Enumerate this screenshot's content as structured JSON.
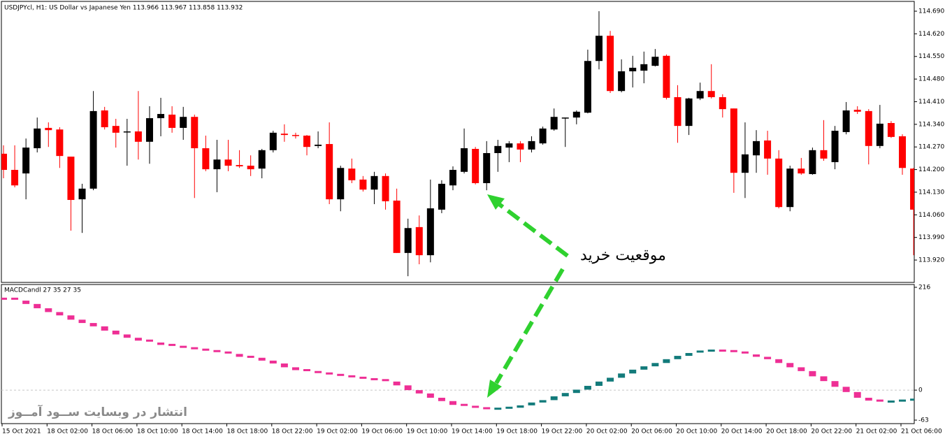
{
  "chart_data": [
    {
      "type": "candlestick",
      "title": "USDJPYcl, H1:  US Dollar vs Japanese Yen  113.966 113.967 113.858 113.932",
      "annotation": "موقعیت خرید",
      "categories": [
        "15 Oct 2021",
        null,
        null,
        null,
        "18 Oct 02:00",
        null,
        null,
        null,
        "18 Oct 06:00",
        null,
        null,
        null,
        "18 Oct 10:00",
        null,
        null,
        null,
        "18 Oct 14:00",
        null,
        null,
        null,
        "18 Oct 18:00",
        null,
        null,
        null,
        "18 Oct 22:00",
        null,
        null,
        null,
        "19 Oct 02:00",
        null,
        null,
        null,
        "19 Oct 06:00",
        null,
        null,
        null,
        "19 Oct 10:00",
        null,
        null,
        null,
        "19 Oct 14:00",
        null,
        null,
        null,
        "19 Oct 18:00",
        null,
        null,
        null,
        "19 Oct 22:00",
        null,
        null,
        null,
        "20 Oct 02:00",
        null,
        null,
        null,
        "20 Oct 06:00",
        null,
        null,
        null,
        "20 Oct 10:00",
        null,
        null,
        null,
        "20 Oct 14:00",
        null,
        null,
        null,
        "20 Oct 18:00",
        null,
        null,
        null,
        "20 Oct 22:00",
        null,
        null,
        null,
        "21 Oct 02:00",
        null,
        null,
        null,
        "21 Oct 06:00",
        null
      ],
      "open": [
        114.249,
        114.199,
        114.188,
        114.266,
        114.329,
        114.324,
        114.24,
        114.108,
        114.141,
        114.383,
        114.335,
        114.316,
        114.318,
        114.286,
        114.359,
        114.37,
        114.329,
        114.363,
        114.266,
        114.201,
        114.231,
        114.214,
        114.212,
        114.203,
        114.26,
        114.311,
        114.307,
        114.305,
        114.273,
        114.279,
        114.108,
        114.203,
        114.169,
        114.138,
        114.18,
        114.104,
        113.942,
        114.022,
        113.935,
        114.076,
        114.151,
        114.193,
        114.264,
        114.158,
        114.251,
        114.268,
        114.281,
        114.262,
        114.281,
        114.324,
        114.359,
        114.361,
        114.376,
        114.536,
        114.614,
        114.443,
        114.504,
        114.506,
        114.521,
        114.552,
        114.424,
        114.335,
        114.42,
        114.443,
        114.424,
        114.389,
        114.19,
        114.244,
        114.29,
        114.234,
        114.084,
        114.203,
        114.186,
        114.26,
        114.223,
        114.316,
        114.385,
        114.381,
        114.273,
        114.344,
        114.303,
        114.203
      ],
      "high": [
        114.275,
        114.275,
        114.296,
        114.361,
        114.346,
        114.331,
        114.24,
        114.156,
        114.443,
        114.394,
        114.357,
        114.357,
        114.443,
        114.396,
        114.422,
        114.396,
        114.394,
        114.37,
        114.305,
        114.292,
        114.292,
        114.26,
        114.244,
        114.264,
        114.32,
        114.34,
        114.314,
        114.307,
        114.318,
        114.346,
        114.212,
        114.234,
        114.18,
        114.193,
        114.188,
        114.141,
        114.048,
        114.058,
        114.169,
        114.167,
        114.21,
        114.327,
        114.27,
        114.288,
        114.292,
        114.288,
        114.288,
        114.303,
        114.333,
        114.389,
        114.361,
        114.383,
        114.571,
        114.69,
        114.629,
        114.541,
        114.552,
        114.565,
        114.573,
        114.556,
        114.461,
        114.422,
        114.469,
        114.526,
        114.433,
        114.389,
        114.346,
        114.322,
        114.32,
        114.26,
        114.212,
        114.236,
        114.268,
        114.353,
        114.335,
        114.409,
        114.396,
        114.387,
        114.4,
        114.35,
        114.309,
        114.205
      ],
      "low": [
        114.173,
        114.145,
        114.108,
        114.253,
        114.27,
        114.205,
        114.011,
        114.004,
        114.136,
        114.324,
        114.268,
        114.212,
        114.231,
        114.218,
        114.303,
        114.314,
        114.292,
        114.112,
        114.195,
        114.13,
        114.195,
        114.205,
        114.18,
        114.173,
        114.253,
        114.286,
        114.296,
        114.244,
        114.266,
        114.093,
        114.071,
        114.158,
        114.132,
        114.093,
        114.076,
        113.942,
        113.87,
        113.907,
        113.913,
        114.065,
        114.136,
        114.188,
        114.154,
        114.136,
        114.193,
        114.223,
        114.223,
        114.253,
        114.277,
        114.32,
        114.27,
        114.34,
        114.374,
        114.51,
        114.437,
        114.439,
        114.454,
        114.467,
        114.519,
        114.417,
        114.283,
        114.307,
        114.415,
        114.42,
        114.361,
        114.128,
        114.112,
        114.19,
        114.184,
        114.08,
        114.071,
        114.184,
        114.184,
        114.227,
        114.201,
        114.309,
        114.372,
        114.216,
        114.266,
        114.298,
        114.184,
        113.935
      ],
      "close": [
        114.199,
        114.151,
        114.268,
        114.327,
        114.322,
        114.242,
        114.106,
        114.141,
        114.381,
        114.331,
        114.314,
        114.318,
        114.286,
        114.359,
        114.372,
        114.329,
        114.363,
        114.266,
        114.201,
        114.231,
        114.212,
        114.21,
        114.201,
        114.26,
        114.314,
        114.307,
        114.305,
        114.27,
        114.277,
        114.108,
        114.205,
        114.167,
        114.138,
        114.18,
        114.102,
        113.942,
        114.019,
        113.935,
        114.08,
        114.156,
        114.199,
        114.266,
        114.158,
        114.251,
        114.273,
        114.281,
        114.262,
        114.288,
        114.327,
        114.363,
        114.361,
        114.379,
        114.536,
        114.614,
        114.443,
        114.504,
        114.515,
        114.526,
        114.549,
        114.422,
        114.335,
        114.42,
        114.443,
        114.424,
        114.387,
        114.19,
        114.247,
        114.288,
        114.234,
        114.084,
        114.203,
        114.188,
        114.26,
        114.234,
        114.32,
        114.383,
        114.379,
        114.273,
        114.342,
        114.301,
        114.205,
        114.076
      ],
      "up_color": "#000000",
      "down_color": "#ff0000",
      "ylim": [
        113.853,
        114.716
      ],
      "yticks": [
        {
          "value": 114.69,
          "label": "114.690"
        },
        {
          "value": 114.62,
          "label": "114.620"
        },
        {
          "value": 114.55,
          "label": "114.550"
        },
        {
          "value": 114.48,
          "label": "114.480"
        },
        {
          "value": 114.41,
          "label": "114.410"
        },
        {
          "value": 114.34,
          "label": "114.340"
        },
        {
          "value": 114.27,
          "label": "114.270"
        },
        {
          "value": 114.2,
          "label": "114.200"
        },
        {
          "value": 114.13,
          "label": "114.130"
        },
        {
          "value": 114.06,
          "label": "114.060"
        },
        {
          "value": 113.99,
          "label": "113.990"
        },
        {
          "value": 113.92,
          "label": "113.920"
        }
      ]
    },
    {
      "type": "macd-candle",
      "title": "MACDCandl 27 35 27 35",
      "watermark": "انتشار در وبسایت  ســود آمــوز",
      "values": [
        192,
        188,
        181,
        172,
        164,
        157,
        148,
        141,
        134,
        125,
        117,
        110,
        104,
        100,
        95,
        91,
        88,
        85,
        82,
        79,
        76,
        70,
        68,
        62,
        56,
        48,
        42,
        38,
        35,
        32,
        29,
        26,
        23,
        21,
        18,
        10,
        0,
        -7,
        -16,
        -23,
        -31,
        -35,
        -38,
        -40,
        -39,
        -37,
        -32,
        -26,
        -21,
        -13,
        -6,
        1,
        9,
        18,
        26,
        35,
        43,
        50,
        57,
        65,
        72,
        78,
        81,
        83,
        82,
        79,
        75,
        70,
        65,
        57,
        48,
        40,
        29,
        19,
        7,
        -4,
        -16,
        -22,
        -25,
        -24,
        -22,
        -20
      ],
      "up_color": "#137b7b",
      "down_color": "#ee2f95",
      "ylim": [
        -63,
        216
      ],
      "yticks": [
        216,
        0,
        -63
      ]
    }
  ]
}
